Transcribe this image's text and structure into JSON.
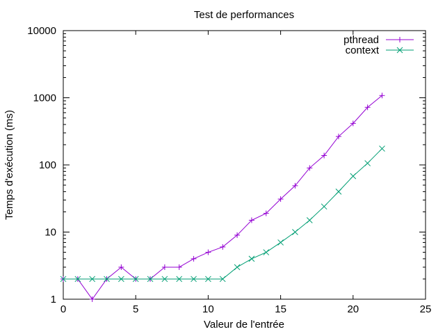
{
  "chart_data": {
    "type": "line",
    "title": "Test de performances",
    "xlabel": "Valeur de l'entrée",
    "ylabel": "Temps d'exécution (ms)",
    "xlim": [
      0,
      25
    ],
    "ylim": [
      1,
      10000
    ],
    "yscale": "log",
    "grid": false,
    "legend_position": "top-right",
    "xticks": [
      0,
      5,
      10,
      15,
      20,
      25
    ],
    "xtick_labels": [
      "0",
      "5",
      "10",
      "15",
      "20",
      "25"
    ],
    "yticks": [
      1,
      10,
      100,
      1000,
      10000
    ],
    "ytick_labels": [
      "1",
      "10",
      "100",
      "1000",
      "10000"
    ],
    "x": [
      0,
      1,
      2,
      3,
      4,
      5,
      6,
      7,
      8,
      9,
      10,
      11,
      12,
      13,
      14,
      15,
      16,
      17,
      18,
      19,
      20,
      21,
      22
    ],
    "series": [
      {
        "name": "pthread",
        "color": "#9400d3",
        "marker": "plus",
        "values": [
          2,
          2,
          1,
          2,
          3,
          2,
          2,
          3,
          3,
          4,
          5,
          6,
          9,
          15,
          19,
          31,
          49,
          90,
          138,
          265,
          415,
          720,
          1080
        ]
      },
      {
        "name": "context",
        "color": "#009e73",
        "marker": "cross",
        "values": [
          2,
          2,
          2,
          2,
          2,
          2,
          2,
          2,
          2,
          2,
          2,
          2,
          3,
          4,
          5,
          7,
          10,
          15,
          24,
          40,
          68,
          106,
          175
        ]
      }
    ]
  }
}
